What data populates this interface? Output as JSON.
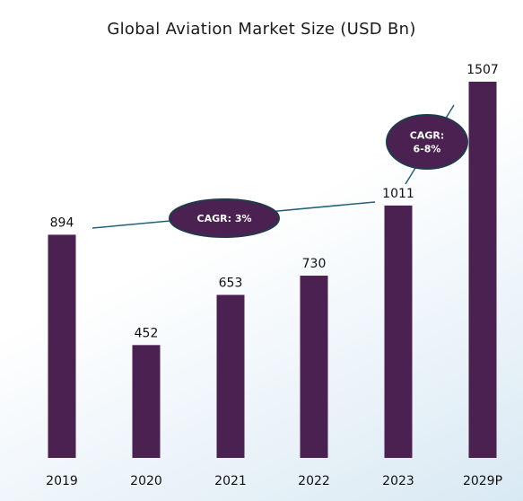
{
  "chart_data": {
    "type": "bar",
    "title": "Global Aviation Market Size (USD Bn)",
    "categories": [
      "2019",
      "2020",
      "2021",
      "2022",
      "2023",
      "2029P"
    ],
    "values": [
      894,
      452,
      653,
      730,
      1011,
      1507
    ],
    "value_labels": [
      "894",
      "452",
      "653",
      "730",
      "1011",
      "1507"
    ],
    "ylim": [
      0,
      1600
    ],
    "grid": false,
    "legend": "none",
    "bar_color": "#4a2150",
    "annotations": [
      {
        "lines": [
          "CAGR: 3%"
        ],
        "from": "2019",
        "to": "2023"
      },
      {
        "lines": [
          "CAGR:",
          "6-8%"
        ],
        "from": "2023",
        "to": "2029P"
      }
    ]
  }
}
